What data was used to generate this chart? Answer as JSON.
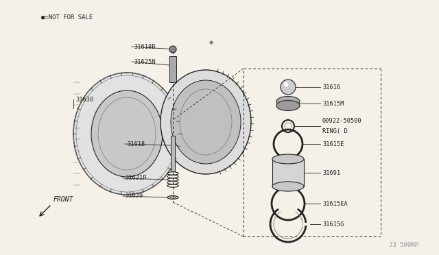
{
  "background_color": "#f5f0e8",
  "watermark": "J3 500NP",
  "not_for_sale_label": "●=NOT FOR SALE",
  "front_label": "FRONT",
  "parts": [
    {
      "id": "31618B",
      "label": "31618B"
    },
    {
      "id": "31625N",
      "label": "31625N"
    },
    {
      "id": "31630",
      "label": "31630"
    },
    {
      "id": "31618",
      "label": "31618"
    },
    {
      "id": "31621P",
      "label": "31621P"
    },
    {
      "id": "31639",
      "label": "31639"
    },
    {
      "id": "31616",
      "label": "31616"
    },
    {
      "id": "31615M",
      "label": "31615M"
    },
    {
      "id": "00922-50500",
      "label": "00922-50500\nRING( D"
    },
    {
      "id": "31615E",
      "label": "31615E"
    },
    {
      "id": "31691",
      "label": "31691"
    },
    {
      "id": "31615EA",
      "label": "31615EA"
    },
    {
      "id": "31615G",
      "label": "31615G"
    }
  ]
}
